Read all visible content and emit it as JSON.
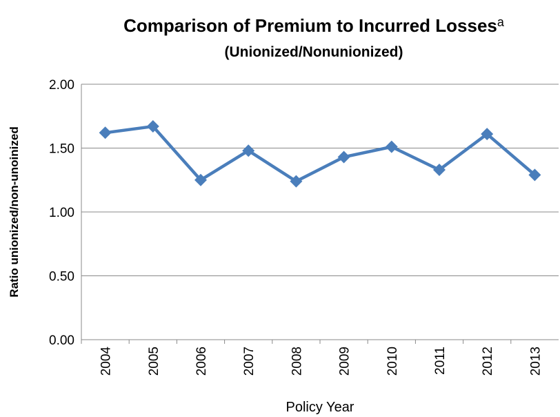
{
  "chart_data": {
    "type": "line",
    "title": "Comparison of Premium to Incurred Losses",
    "title_superscript": "a",
    "subtitle": "(Unionized/Nonunionized)",
    "x_label": "Policy Year",
    "y_label": "Ratio unionized/non-unoinized",
    "categories": [
      "2004",
      "2005",
      "2006",
      "2007",
      "2008",
      "2009",
      "2010",
      "2011",
      "2012",
      "2013"
    ],
    "values": [
      1.62,
      1.67,
      1.25,
      1.48,
      1.24,
      1.43,
      1.51,
      1.33,
      1.61,
      1.29
    ],
    "color": "#4a7ebb",
    "ylim": [
      0,
      2
    ],
    "yticks": [
      {
        "value": 0,
        "label": "0.00"
      },
      {
        "value": 0.5,
        "label": "0.50"
      },
      {
        "value": 1,
        "label": "1.00"
      },
      {
        "value": 1.5,
        "label": "1.50"
      },
      {
        "value": 2,
        "label": "2.00"
      }
    ],
    "grid": true
  }
}
